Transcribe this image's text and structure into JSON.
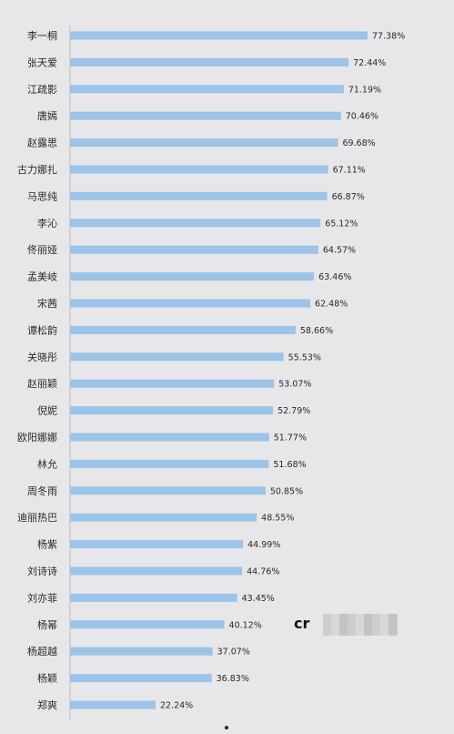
{
  "chart_data": {
    "type": "bar",
    "orientation": "horizontal",
    "categories": [
      "李一桐",
      "张天爱",
      "江疏影",
      "唐嫣",
      "赵露思",
      "古力娜扎",
      "马思纯",
      "李沁",
      "佟丽娅",
      "孟美岐",
      "宋茜",
      "谭松韵",
      "关晓彤",
      "赵丽颖",
      "倪妮",
      "欧阳娜娜",
      "林允",
      "周冬雨",
      "迪丽热巴",
      "杨紫",
      "刘诗诗",
      "刘亦菲",
      "杨幂",
      "杨超越",
      "杨颖",
      "郑爽"
    ],
    "values": [
      77.38,
      72.44,
      71.19,
      70.46,
      69.68,
      67.11,
      66.87,
      65.12,
      64.57,
      63.46,
      62.48,
      58.66,
      55.53,
      53.07,
      52.79,
      51.77,
      51.68,
      50.85,
      48.55,
      44.99,
      44.76,
      43.45,
      40.12,
      37.07,
      36.83,
      22.24
    ],
    "value_labels": [
      "77.38%",
      "72.44%",
      "71.19%",
      "70.46%",
      "69.68%",
      "67.11%",
      "66.87%",
      "65.12%",
      "64.57%",
      "63.46%",
      "62.48%",
      "58.66%",
      "55.53%",
      "53.07%",
      "52.79%",
      "51.77%",
      "51.68%",
      "50.85%",
      "48.55%",
      "44.99%",
      "44.76%",
      "43.45%",
      "40.12%",
      "37.07%",
      "36.83%",
      "22.24%"
    ],
    "xlim": [
      0,
      77.38
    ],
    "grid": false,
    "legend": "none",
    "bar_color": "#9cc3e8"
  },
  "watermark": {
    "text": "cr"
  }
}
